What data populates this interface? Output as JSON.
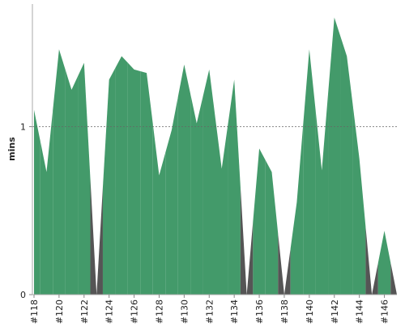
{
  "chart_data": {
    "type": "area",
    "y_label": "mins",
    "categories": [
      "#118",
      null,
      "#120",
      null,
      "#122",
      null,
      "#124",
      null,
      "#126",
      null,
      "#128",
      null,
      "#130",
      null,
      "#132",
      null,
      "#134",
      null,
      "#136",
      null,
      "#138",
      null,
      "#140",
      null,
      "#142",
      null,
      "#144",
      null,
      "#146",
      null
    ],
    "values": [
      1.1,
      0.73,
      1.46,
      1.22,
      1.38,
      0,
      1.28,
      1.42,
      1.34,
      1.32,
      0.71,
      0.98,
      1.37,
      1.02,
      1.34,
      0.75,
      1.28,
      0,
      0.87,
      0.73,
      0,
      0.55,
      1.46,
      0.74,
      1.65,
      1.42,
      0.81,
      0,
      0.38,
      0
    ],
    "colors": [
      "#439a6a",
      "#439a6a",
      "#439a6a",
      "#439a6a",
      "#439a6a",
      "#555555",
      "#439a6a",
      "#439a6a",
      "#439a6a",
      "#439a6a",
      "#439a6a",
      "#439a6a",
      "#439a6a",
      "#439a6a",
      "#439a6a",
      "#439a6a",
      "#439a6a",
      "#555555",
      "#439a6a",
      "#439a6a",
      "#555555",
      "#439a6a",
      "#439a6a",
      "#439a6a",
      "#439a6a",
      "#439a6a",
      "#439a6a",
      "#555555",
      "#439a6a",
      "#555555"
    ],
    "ylim": [
      0,
      1.73
    ],
    "yticks": [
      0,
      1
    ],
    "grid": true
  }
}
